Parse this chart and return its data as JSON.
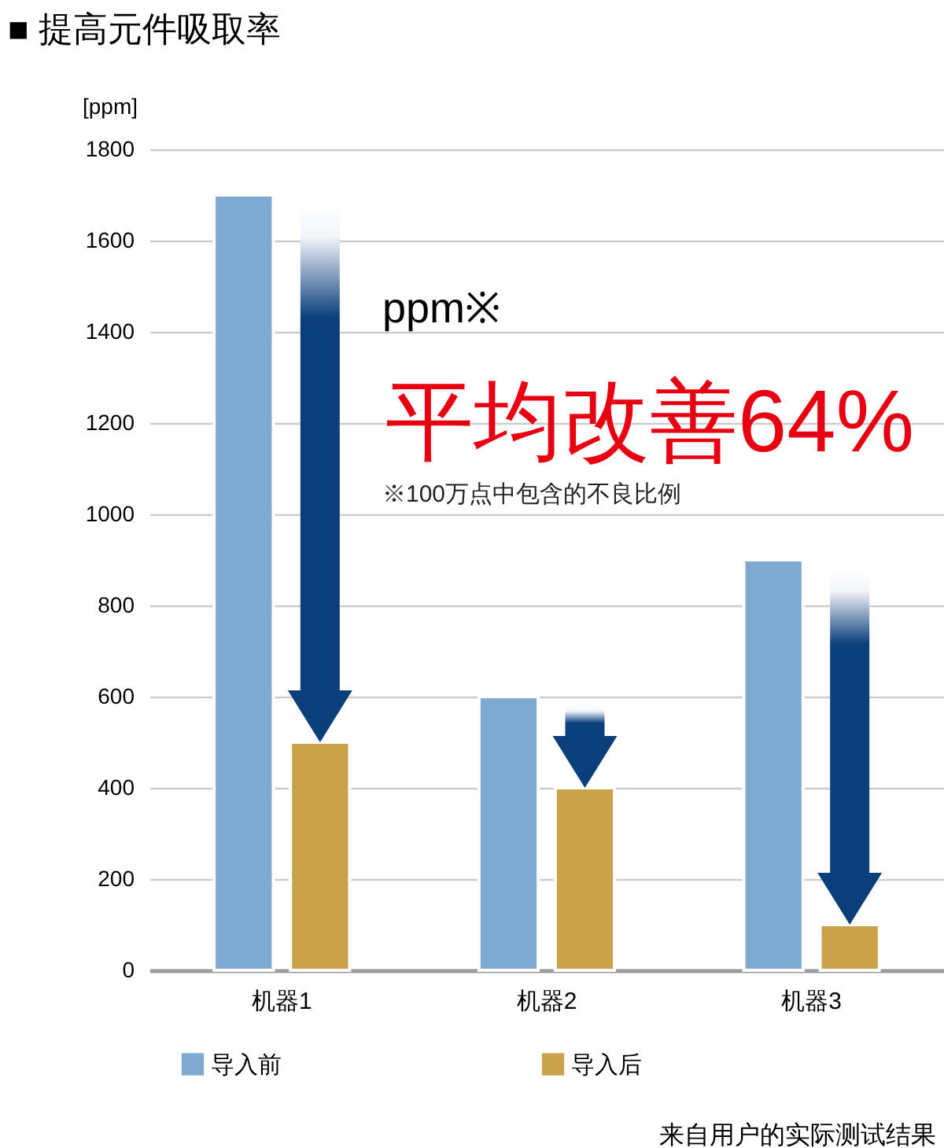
{
  "chart_data": {
    "type": "bar",
    "title": "■ 提高元件吸取率",
    "ylabel": "[ppm]",
    "categories": [
      "机器1",
      "机器2",
      "机器3"
    ],
    "series": [
      {
        "name": "导入前",
        "color": "#7ea9d1",
        "values": [
          1700,
          600,
          900
        ]
      },
      {
        "name": "导入后",
        "color": "#c9a24a",
        "values": [
          500,
          400,
          100
        ]
      }
    ],
    "ylim": [
      0,
      1800
    ],
    "yticks": [
      0,
      200,
      400,
      600,
      800,
      1000,
      1200,
      1400,
      1600,
      1800
    ],
    "grid": "y",
    "legend": "bottom",
    "annotations": [
      "ppm※",
      "平均改善64%",
      "※100万点中包含的不良比例",
      "来自用户的实际测试结果"
    ]
  }
}
